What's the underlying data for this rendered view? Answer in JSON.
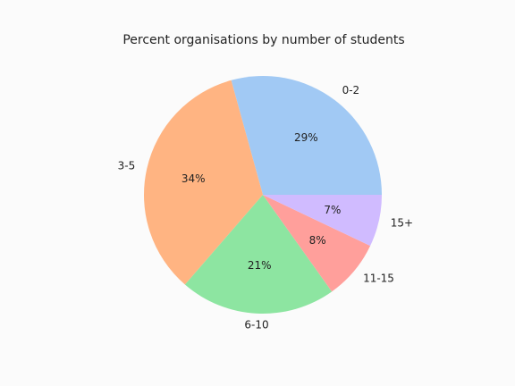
{
  "chart_data": {
    "type": "pie",
    "title": "Percent organisations by number of students",
    "categories": [
      "0-2",
      "3-5",
      "6-10",
      "11-15",
      "15+"
    ],
    "values": [
      29,
      34,
      21,
      8,
      7
    ],
    "value_labels": [
      "29%",
      "34%",
      "21%",
      "8%",
      "7%"
    ],
    "colors": [
      "#a1c9f4",
      "#ffb482",
      "#8de5a1",
      "#ff9f9b",
      "#d0bbff"
    ]
  }
}
